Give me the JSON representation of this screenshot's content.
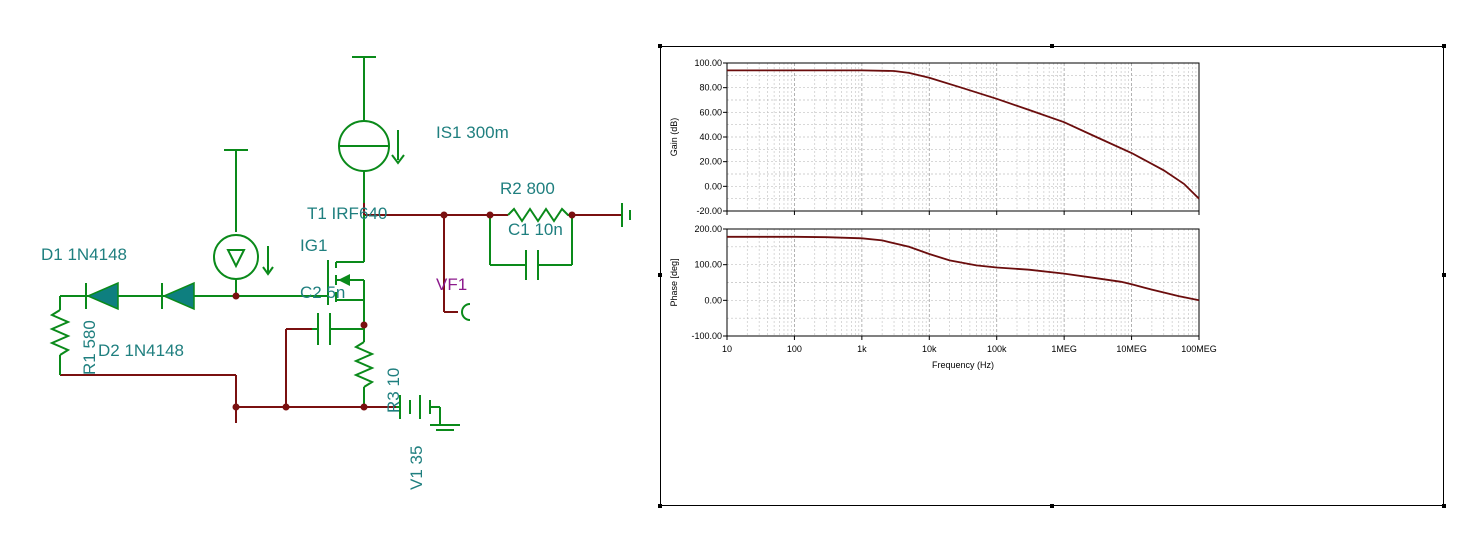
{
  "schematic": {
    "labels": {
      "is1": "IS1 300m",
      "t1": "T1 IRF640",
      "ig1": "IG1",
      "r2": "R2 800",
      "c1": "C1 10n",
      "d1": "D1 1N4148",
      "d2": "D2 1N4148",
      "r1": "R1 580",
      "c2": "C2 5n",
      "vf1": "VF1",
      "r3": "R3 10",
      "v1": "V1 35"
    },
    "colors": {
      "wire": "#7a1010",
      "component": "#0a8a1a",
      "diode": "#0e7f7f",
      "label": "#1f7f7f",
      "probe": "#8c1a8c"
    }
  },
  "chart_data": [
    {
      "type": "line",
      "xscale": "log",
      "xlim": [
        10,
        100000000
      ],
      "ylim": [
        -20,
        100
      ],
      "xlabel": "",
      "ylabel": "Gain (dB)",
      "x_ticklabels": [
        "10",
        "100",
        "1k",
        "10k",
        "100k",
        "1MEG",
        "10MEG",
        "100MEG"
      ],
      "y_ticklabels": [
        "100.00",
        "80.00",
        "60.00",
        "40.00",
        "20.00",
        "0.00",
        "-20.00"
      ],
      "y_ticks": [
        100,
        80,
        60,
        40,
        20,
        0,
        -20
      ],
      "grid": true,
      "color": "#6b0d0d",
      "series": [
        {
          "x": [
            10,
            100,
            1000,
            3000,
            5000,
            10000,
            30000,
            100000,
            300000,
            1000000,
            3000000,
            10000000,
            30000000,
            60000000,
            100000000
          ],
          "y": [
            94,
            94,
            94,
            93.5,
            92,
            88,
            80,
            71,
            62,
            52,
            40,
            27,
            13,
            2,
            -10
          ]
        }
      ]
    },
    {
      "type": "line",
      "xscale": "log",
      "xlim": [
        10,
        100000000
      ],
      "ylim": [
        -100,
        200
      ],
      "xlabel": "Frequency (Hz)",
      "ylabel": "Phase [deg]",
      "x_ticklabels": [
        "10",
        "100",
        "1k",
        "10k",
        "100k",
        "1MEG",
        "10MEG",
        "100MEG"
      ],
      "y_ticklabels": [
        "200.00",
        "100.00",
        "0.00",
        "-100.00"
      ],
      "y_ticks": [
        200,
        100,
        0,
        -100
      ],
      "grid": true,
      "color": "#6b0d0d",
      "series": [
        {
          "x": [
            10,
            100,
            300,
            1000,
            2000,
            5000,
            10000,
            20000,
            50000,
            100000,
            300000,
            1000000,
            3000000,
            7000000,
            10000000,
            20000000,
            50000000,
            100000000
          ],
          "y": [
            178,
            178,
            177,
            174,
            168,
            150,
            130,
            112,
            98,
            92,
            86,
            75,
            62,
            52,
            45,
            30,
            12,
            0
          ]
        }
      ]
    }
  ]
}
